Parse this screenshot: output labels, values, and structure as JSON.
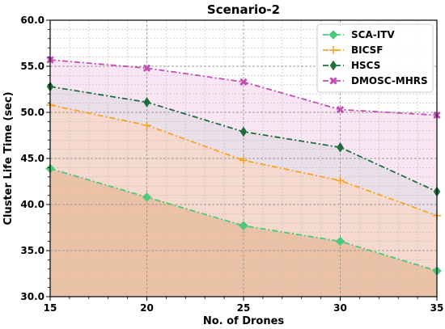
{
  "chart_data": {
    "type": "line",
    "title": "Scenario-2",
    "xlabel": "No. of Drones",
    "ylabel": "Cluster Life Time (sec)",
    "x": [
      15,
      20,
      25,
      30,
      35
    ],
    "xlim": [
      15,
      35
    ],
    "ylim": [
      30,
      60
    ],
    "x_ticks": [
      "15",
      "20",
      "25",
      "30",
      "35"
    ],
    "y_ticks": [
      "30.0",
      "35.0",
      "40.0",
      "45.0",
      "50.0",
      "55.0",
      "60.0"
    ],
    "grid": true,
    "legend_position": "top-right",
    "series": [
      {
        "name": "SCA-ITV",
        "values": [
          43.9,
          40.8,
          37.7,
          36.0,
          32.8
        ],
        "color": "#4cc97a",
        "marker": "diamond",
        "fill": "#e8b796"
      },
      {
        "name": "BICSF",
        "values": [
          50.8,
          48.6,
          44.8,
          42.6,
          38.8
        ],
        "color": "#f5a623",
        "marker": "plus",
        "fill": "#f3d1c6"
      },
      {
        "name": "HSCS",
        "values": [
          52.8,
          51.1,
          47.9,
          46.2,
          41.4
        ],
        "color": "#1f6e3d",
        "marker": "thin-diamond",
        "fill": "#e6d8e4"
      },
      {
        "name": "DMOSC-MHRS",
        "values": [
          55.7,
          54.8,
          53.3,
          50.3,
          49.7
        ],
        "color": "#c24fb4",
        "marker": "x",
        "fill": "#f8e0f2"
      }
    ]
  }
}
